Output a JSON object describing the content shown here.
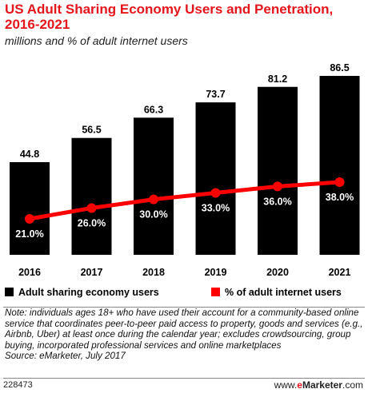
{
  "title": "US Adult Sharing Economy Users and Penetration, 2016-2021",
  "subtitle": "millions and % of adult internet users",
  "chart_data": {
    "type": "bar",
    "categories": [
      "2016",
      "2017",
      "2018",
      "2019",
      "2020",
      "2021"
    ],
    "series": [
      {
        "name": "Adult sharing economy users",
        "type": "bar",
        "values": [
          44.8,
          56.5,
          66.3,
          73.7,
          81.2,
          86.5
        ],
        "labels": [
          "44.8",
          "56.5",
          "66.3",
          "73.7",
          "81.2",
          "86.5"
        ],
        "color": "#000000"
      },
      {
        "name": "% of adult internet users",
        "type": "line",
        "values": [
          21.0,
          26.0,
          30.0,
          33.0,
          36.0,
          38.0
        ],
        "labels": [
          "21.0%",
          "26.0%",
          "30.0%",
          "33.0%",
          "36.0%",
          "38.0%"
        ],
        "color": "#ff0000"
      }
    ],
    "legend_position": "bottom",
    "grid": false
  },
  "note": "Note: individuals ages 18+ who have used their account for a community-based online service that coordinates peer-to-peer paid access to property, goods and services (e.g., Airbnb, Uber) at least once during the calendar year; excludes crowdsourcing, group buying, incorporated professional services and online marketplaces",
  "source": "Source: eMarketer, July 2017",
  "footer": {
    "chart_id": "228473",
    "brand_prefix": "www.",
    "brand_e": "e",
    "brand_name": "Marketer",
    "brand_suffix": ".com"
  }
}
